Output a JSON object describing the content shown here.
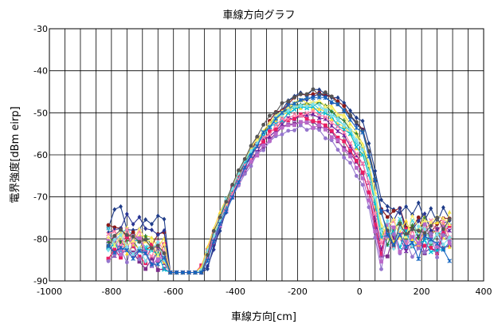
{
  "chart_data": {
    "type": "line",
    "title": "車線方向グラフ",
    "xlabel": "車線方向[cm]",
    "ylabel": "電界強度[dBm eirp]",
    "xlim": [
      -1000,
      400
    ],
    "ylim": [
      -90,
      -30
    ],
    "xticks": [
      "-1000",
      "-800",
      "-600",
      "-400",
      "-200",
      "0",
      "200",
      "400"
    ],
    "yticks": [
      "-30",
      "-40",
      "-50",
      "-60",
      "-70",
      "-80",
      "-90"
    ],
    "grid": true,
    "x_grid_step": 50,
    "y_grid_step": 10,
    "series_x_range": [
      -810,
      290
    ],
    "series_x_step": 20,
    "series": [
      {
        "color": "#1f3c88",
        "marker": "diamond",
        "peak": -45.0,
        "center": -140,
        "base": -75
      },
      {
        "color": "#7b2d8b",
        "marker": "square",
        "peak": -52.0,
        "center": -180,
        "base": -83
      },
      {
        "color": "#f0e442",
        "marker": "triangle",
        "peak": -47.0,
        "center": -160,
        "base": -79
      },
      {
        "color": "#4dd0e1",
        "marker": "x",
        "peak": -48.0,
        "center": -170,
        "base": -80
      },
      {
        "color": "#6a1b9a",
        "marker": "star",
        "peak": -50.5,
        "center": -175,
        "base": -82
      },
      {
        "color": "#8b1a1a",
        "marker": "circle",
        "peak": -45.5,
        "center": -150,
        "base": -78
      },
      {
        "color": "#2e7d32",
        "marker": "plus",
        "peak": -47.5,
        "center": -165,
        "base": -80
      },
      {
        "color": "#283593",
        "marker": "diamond",
        "peak": -46.0,
        "center": -145,
        "base": -77
      },
      {
        "color": "#e91e63",
        "marker": "square",
        "peak": -51.0,
        "center": -185,
        "base": -82
      },
      {
        "color": "#fdd835",
        "marker": "triangle",
        "peak": -48.5,
        "center": -175,
        "base": -81
      },
      {
        "color": "#00bcd4",
        "marker": "x",
        "peak": -49.0,
        "center": -170,
        "base": -83
      },
      {
        "color": "#9575cd",
        "marker": "circle",
        "peak": -53.5,
        "center": -190,
        "base": -83
      },
      {
        "color": "#ff80ab",
        "marker": "x",
        "peak": -50.0,
        "center": -175,
        "base": -80
      },
      {
        "color": "#ba68c8",
        "marker": "square",
        "peak": -52.5,
        "center": -185,
        "base": -82
      },
      {
        "color": "#fff176",
        "marker": "triangle",
        "peak": -47.0,
        "center": -165,
        "base": -79
      },
      {
        "color": "#80deea",
        "marker": "diamond",
        "peak": -48.0,
        "center": -168,
        "base": -81
      },
      {
        "color": "#555555",
        "marker": "circle",
        "peak": -45.0,
        "center": -155,
        "base": -80
      },
      {
        "color": "#1565c0",
        "marker": "star",
        "peak": -46.5,
        "center": -150,
        "base": -84
      }
    ]
  }
}
